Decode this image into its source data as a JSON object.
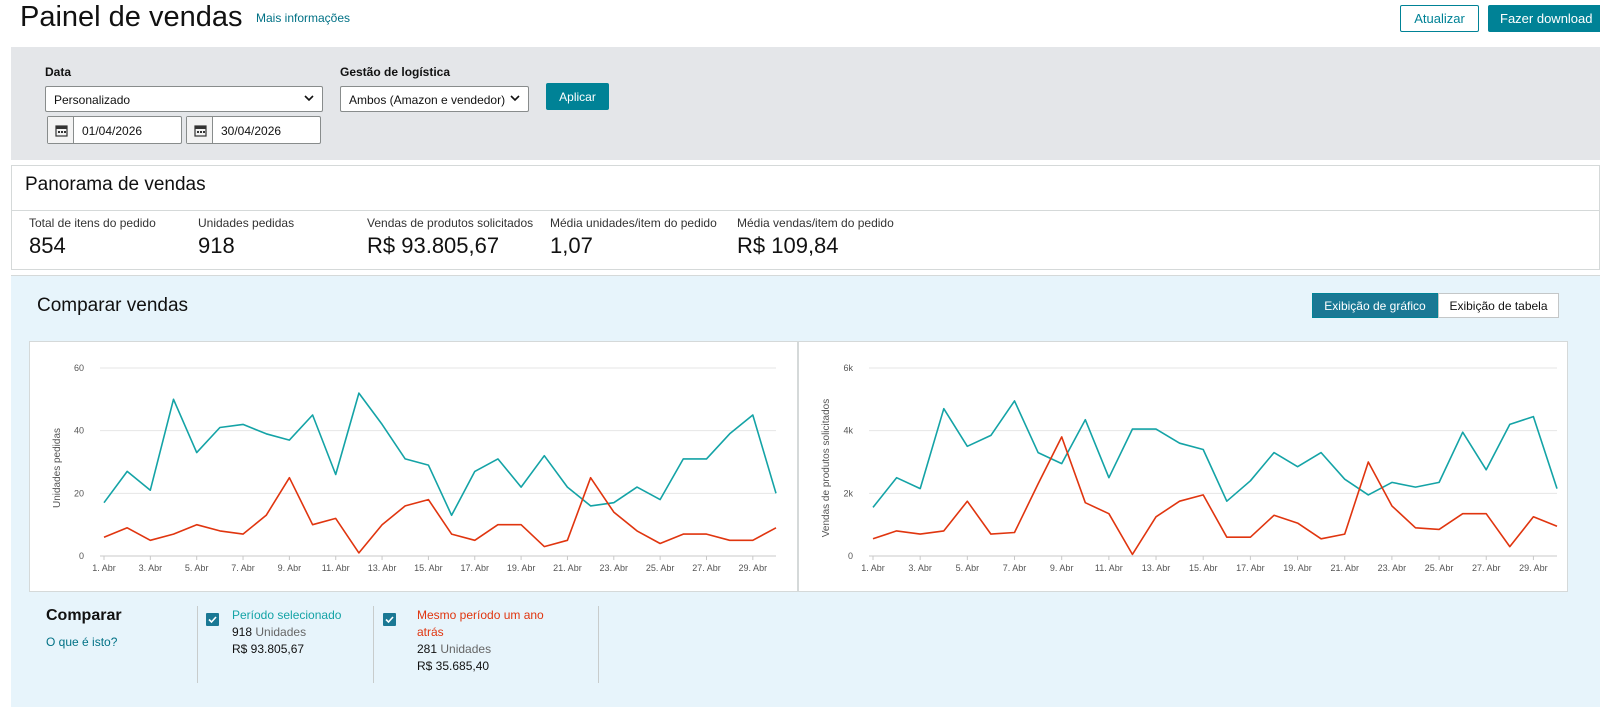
{
  "header": {
    "title": "Painel de vendas",
    "more_info": "Mais informações",
    "refresh_label": "Atualizar",
    "download_label": "Fazer download"
  },
  "filters": {
    "date_label": "Data",
    "date_select": "Personalizado",
    "start_date": "01/04/2026",
    "end_date": "30/04/2026",
    "logistics_label": "Gestão de logística",
    "logistics_select": "Ambos (Amazon e vendedor)",
    "apply_label": "Aplicar"
  },
  "overview": {
    "title": "Panorama de vendas",
    "metrics": [
      {
        "label": "Total de itens do pedido",
        "value": "854"
      },
      {
        "label": "Unidades pedidas",
        "value": "918"
      },
      {
        "label": "Vendas de produtos solicitados",
        "value": "R$ 93.805,67"
      },
      {
        "label": "Média unidades/item do pedido",
        "value": "1,07"
      },
      {
        "label": "Média vendas/item do pedido",
        "value": "R$ 109,84"
      }
    ]
  },
  "compare": {
    "title": "Comparar vendas",
    "view_chart": "Exibição de gráfico",
    "view_table": "Exibição de tabela",
    "legend_title": "Comparar",
    "legend_link": "O que é isto?",
    "current": {
      "name": "Período selecionado",
      "units": "918",
      "units_word": "Unidades",
      "sales": "R$ 93.805,67"
    },
    "previous": {
      "name_line1": "Mesmo período um ano",
      "name_line2": "atrás",
      "units": "281",
      "units_word": "Unidades",
      "sales": "R$ 35.685,40"
    }
  },
  "colors": {
    "current": "#14a3a6",
    "previous": "#e0350f",
    "accent": "#008296"
  },
  "chart_data": [
    {
      "type": "line",
      "ylabel": "Unidades pedidas",
      "ylim": [
        0,
        60
      ],
      "yticks": [
        "0",
        "20",
        "40",
        "60"
      ],
      "ytick_values": [
        0,
        20,
        40,
        60
      ],
      "xtick_labels": [
        "1. Abr",
        "3. Abr",
        "5. Abr",
        "7. Abr",
        "9. Abr",
        "11. Abr",
        "13. Abr",
        "15. Abr",
        "17. Abr",
        "19. Abr",
        "21. Abr",
        "23. Abr",
        "25. Abr",
        "27. Abr",
        "29. Abr"
      ],
      "x_days": [
        1,
        2,
        3,
        4,
        5,
        6,
        7,
        8,
        9,
        10,
        11,
        12,
        13,
        14,
        15,
        16,
        17,
        18,
        19,
        20,
        21,
        22,
        23,
        24,
        25,
        26,
        27,
        28,
        29,
        30
      ],
      "series": [
        {
          "name": "Período selecionado",
          "values": [
            17,
            27,
            21,
            50,
            33,
            41,
            42,
            39,
            37,
            45,
            26,
            52,
            42,
            31,
            29,
            13,
            27,
            31,
            22,
            32,
            22,
            16,
            17,
            22,
            18,
            31,
            31,
            39,
            45,
            20
          ]
        },
        {
          "name": "Mesmo período um ano atrás",
          "values": [
            6,
            9,
            5,
            7,
            10,
            8,
            7,
            13,
            25,
            10,
            12,
            1,
            10,
            16,
            18,
            7,
            5,
            10,
            10,
            3,
            5,
            25,
            14,
            8,
            4,
            7,
            7,
            5,
            5,
            9
          ]
        }
      ],
      "grid": true
    },
    {
      "type": "line",
      "ylabel": "Vendas de produtos solicitados",
      "ylim": [
        0,
        6000
      ],
      "yticks": [
        "0",
        "2k",
        "4k",
        "6k"
      ],
      "ytick_values": [
        0,
        2000,
        4000,
        6000
      ],
      "xtick_labels": [
        "1. Abr",
        "3. Abr",
        "5. Abr",
        "7. Abr",
        "9. Abr",
        "11. Abr",
        "13. Abr",
        "15. Abr",
        "17. Abr",
        "19. Abr",
        "21. Abr",
        "23. Abr",
        "25. Abr",
        "27. Abr",
        "29. Abr"
      ],
      "x_days": [
        1,
        2,
        3,
        4,
        5,
        6,
        7,
        8,
        9,
        10,
        11,
        12,
        13,
        14,
        15,
        16,
        17,
        18,
        19,
        20,
        21,
        22,
        23,
        24,
        25,
        26,
        27,
        28,
        29,
        30
      ],
      "series": [
        {
          "name": "Período selecionado",
          "values": [
            1550,
            2500,
            2150,
            4700,
            3500,
            3850,
            4950,
            3300,
            2950,
            4350,
            2500,
            4050,
            4050,
            3600,
            3400,
            1750,
            2400,
            3300,
            2850,
            3300,
            2450,
            1950,
            2350,
            2200,
            2350,
            3950,
            2750,
            4200,
            4450,
            2150
          ]
        },
        {
          "name": "Mesmo período um ano atrás",
          "values": [
            550,
            800,
            700,
            800,
            1750,
            700,
            750,
            2300,
            3800,
            1700,
            1350,
            50,
            1250,
            1750,
            1950,
            600,
            600,
            1300,
            1050,
            550,
            700,
            3000,
            1600,
            900,
            850,
            1350,
            1350,
            300,
            1250,
            950
          ]
        }
      ],
      "grid": true
    }
  ]
}
